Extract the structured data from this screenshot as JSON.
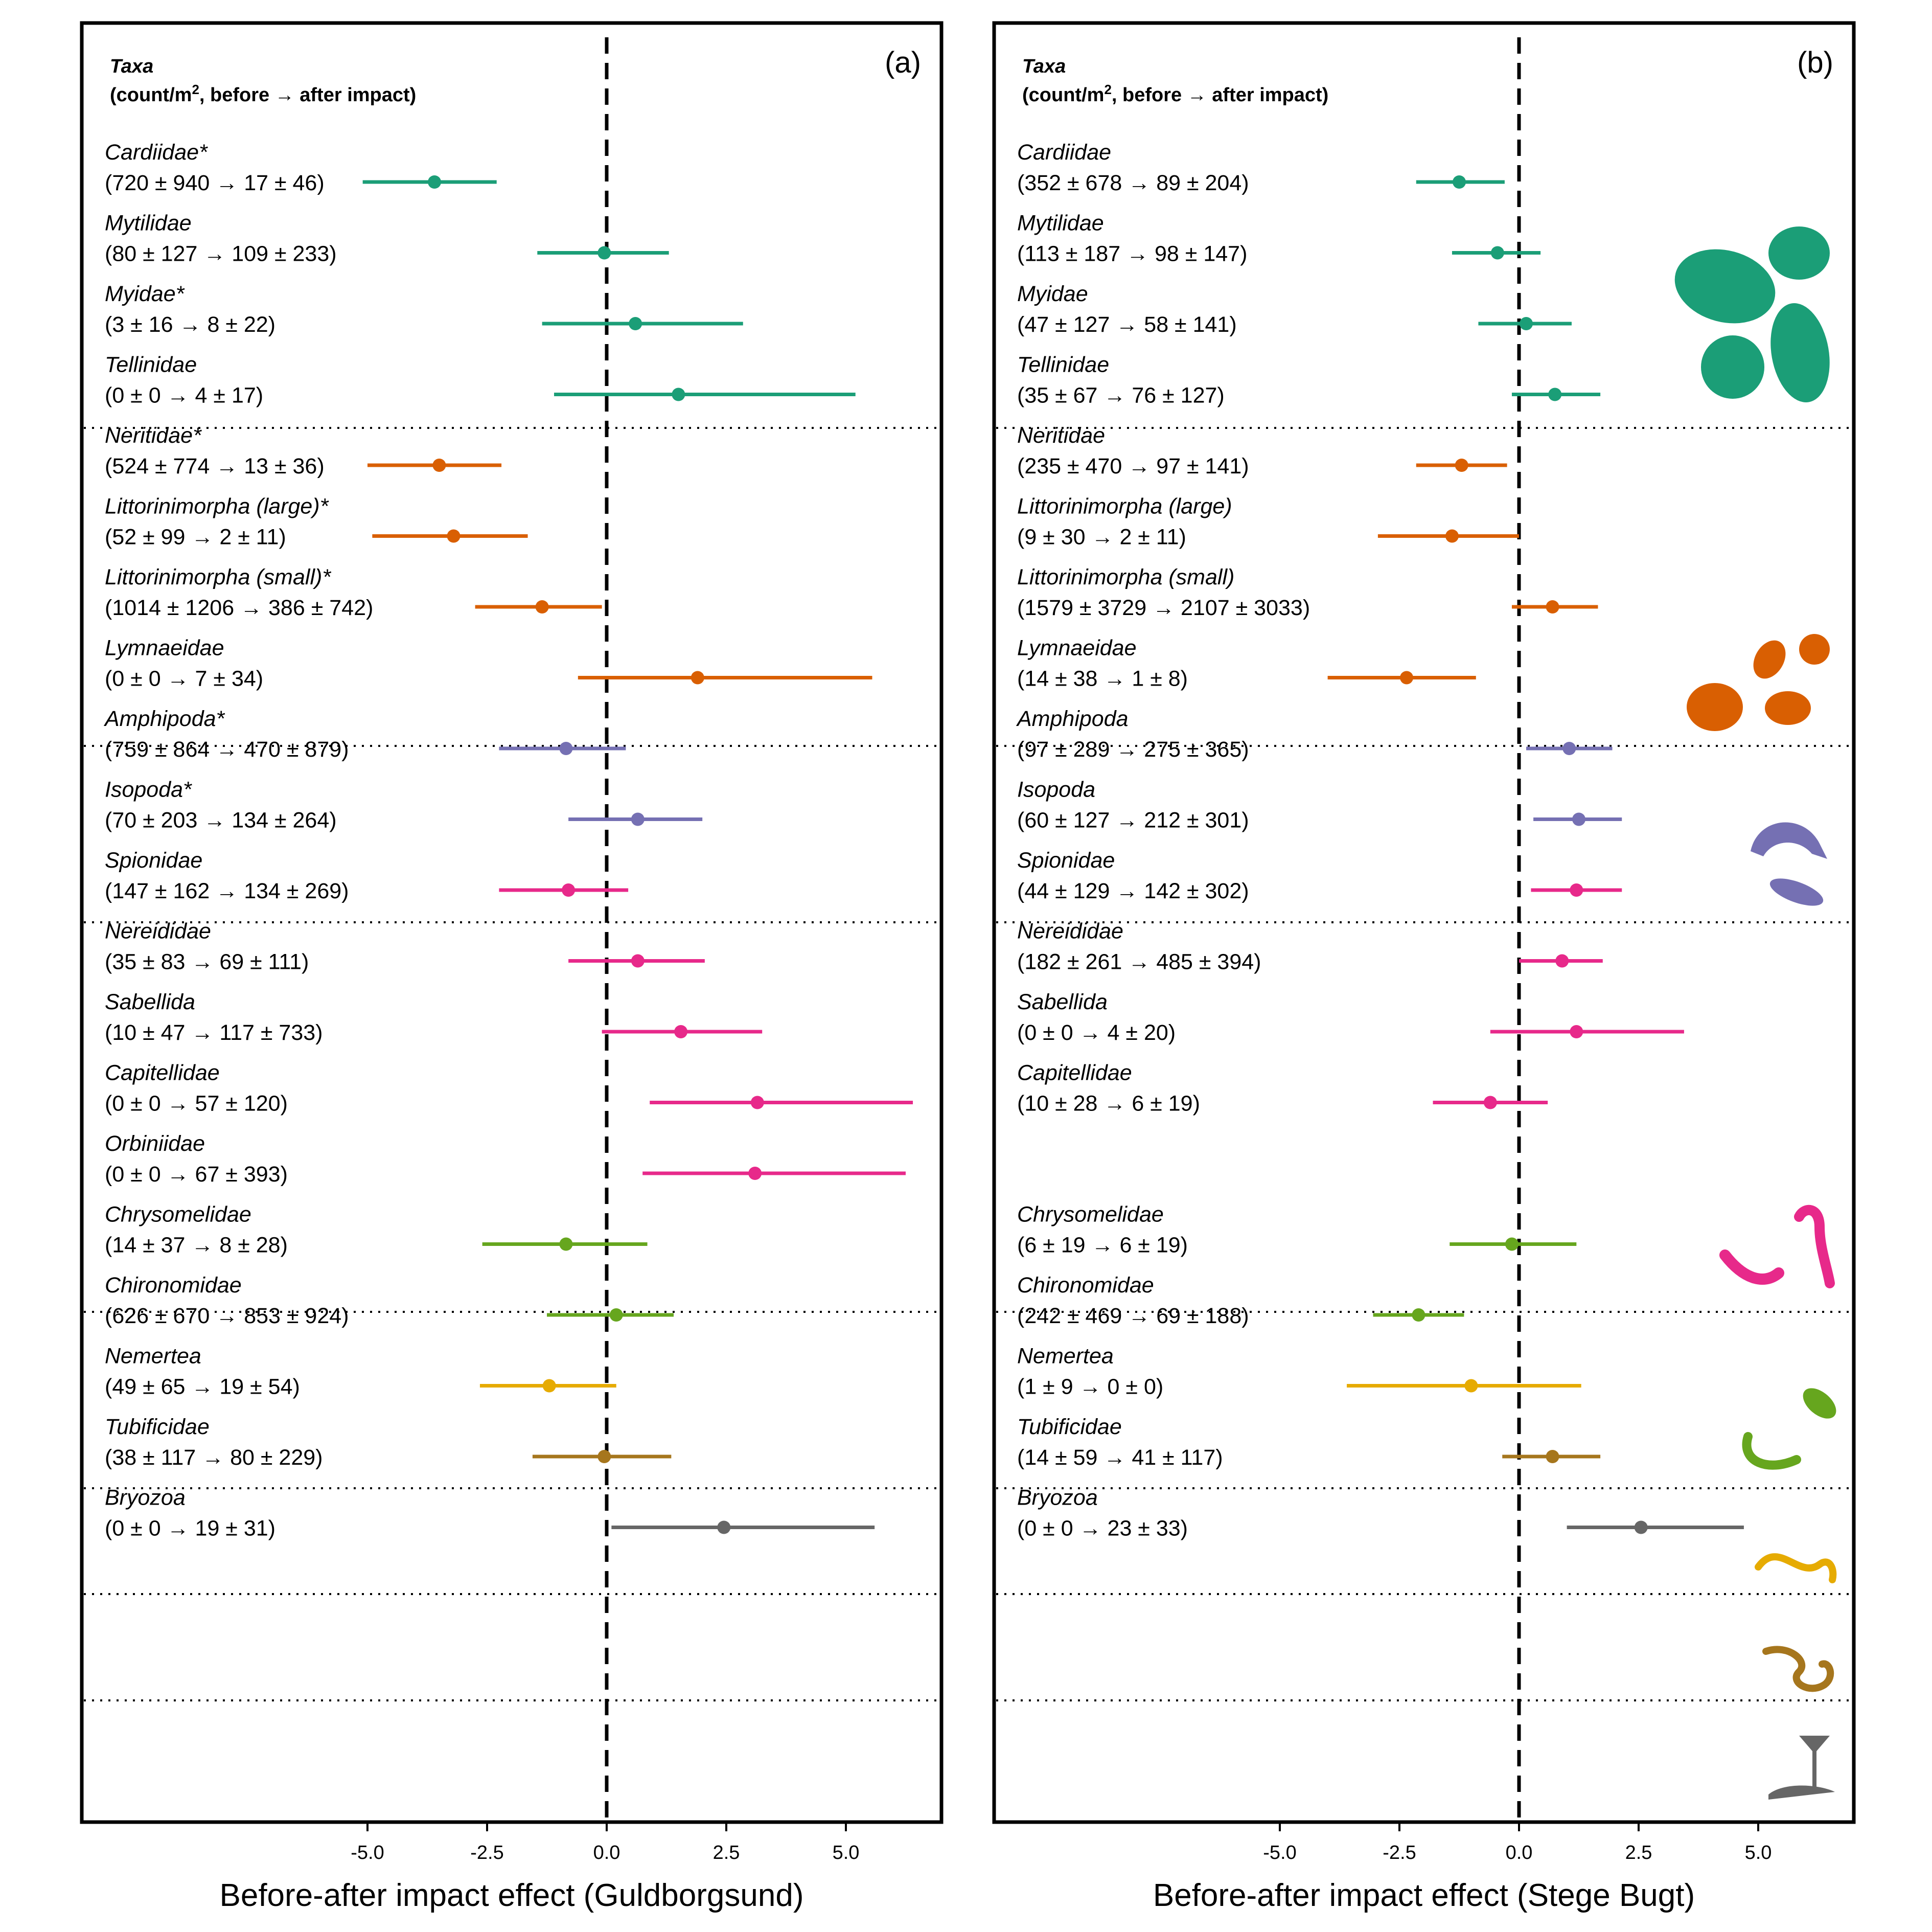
{
  "header": {
    "taxa": "Taxa",
    "unit_before": "(count/m",
    "unit_sup": "2",
    "unit_after": ", before → after impact)"
  },
  "panels": [
    {
      "label": "(a)",
      "xlabel": "Before-after impact effect (Guldborgsund)",
      "xticks": [
        "-5.0",
        "-2.5",
        "0.0",
        "2.5",
        "5.0"
      ]
    },
    {
      "label": "(b)",
      "xlabel": "Before-after impact effect (Stege Bugt)",
      "xticks": [
        "-5.0",
        "-2.5",
        "0.0",
        "2.5",
        "5.0"
      ]
    }
  ],
  "chart_data": [
    {
      "type": "forest",
      "panel": "(a)",
      "xlabel": "Before-after impact effect (Guldborgsund)",
      "xlim": [
        -10.9,
        7.0
      ],
      "reference_line": 0,
      "groups": [
        {
          "color": "#1b9e77",
          "rows": [
            {
              "name": "Cardiidae*",
              "counts": "(720 ± 940 → 17 ± 46)",
              "estimate": -3.6,
              "low": -5.1,
              "high": -2.3
            },
            {
              "name": "Mytilidae",
              "counts": "(80 ± 127 → 109 ± 233)",
              "estimate": -0.05,
              "low": -1.45,
              "high": 1.3
            },
            {
              "name": "Myidae*",
              "counts": "(3 ± 16 → 8 ± 22)",
              "estimate": 0.6,
              "low": -1.35,
              "high": 2.85
            },
            {
              "name": "Tellinidae",
              "counts": "(0 ± 0 → 4 ± 17)",
              "estimate": 1.5,
              "low": -1.1,
              "high": 5.2
            }
          ]
        },
        {
          "color": "#d95f02",
          "rows": [
            {
              "name": "Neritidae*",
              "counts": "(524 ± 774 → 13 ± 36)",
              "estimate": -3.5,
              "low": -5.0,
              "high": -2.2
            },
            {
              "name": "Littorinimorpha (large)*",
              "counts": "(52 ± 99 → 2 ± 11)",
              "estimate": -3.2,
              "low": -4.9,
              "high": -1.65
            },
            {
              "name": "Littorinimorpha (small)*",
              "counts": "(1014 ± 1206 → 386 ± 742)",
              "estimate": -1.35,
              "low": -2.75,
              "high": -0.1
            },
            {
              "name": "Lymnaeidae",
              "counts": "(0 ± 0 → 7 ± 34)",
              "estimate": 1.9,
              "low": -0.6,
              "high": 5.55
            }
          ]
        },
        {
          "color": "#7570b3",
          "rows": [
            {
              "name": "Amphipoda*",
              "counts": "(759 ± 864 → 470 ± 879)",
              "estimate": -0.85,
              "low": -2.25,
              "high": 0.4
            },
            {
              "name": "Isopoda*",
              "counts": "(70 ± 203 → 134 ± 264)",
              "estimate": 0.65,
              "low": -0.8,
              "high": 2.0
            }
          ]
        },
        {
          "color": "#e7298a",
          "rows": [
            {
              "name": "Spionidae",
              "counts": "(147 ± 162 → 134 ± 269)",
              "estimate": -0.8,
              "low": -2.25,
              "high": 0.45
            },
            {
              "name": "Nereididae",
              "counts": "(35 ± 83 → 69 ± 111)",
              "estimate": 0.65,
              "low": -0.8,
              "high": 2.05
            },
            {
              "name": "Sabellida",
              "counts": "(10 ± 47 → 117 ± 733)",
              "estimate": 1.55,
              "low": -0.1,
              "high": 3.25
            },
            {
              "name": "Capitellidae",
              "counts": "(0 ± 0 → 57 ± 120)",
              "estimate": 3.15,
              "low": 0.9,
              "high": 6.4
            },
            {
              "name": "Orbiniidae",
              "counts": "(0 ± 0 → 67 ± 393)",
              "estimate": 3.1,
              "low": 0.75,
              "high": 6.25
            }
          ]
        },
        {
          "color": "#66a61e",
          "rows": [
            {
              "name": "Chrysomelidae",
              "counts": "(14 ± 37 → 8 ± 28)",
              "estimate": -0.85,
              "low": -2.6,
              "high": 0.85
            },
            {
              "name": "Chironomidae",
              "counts": "(626 ± 670 → 853 ± 924)",
              "estimate": 0.2,
              "low": -1.25,
              "high": 1.4
            }
          ]
        },
        {
          "color": "#e6ab02",
          "rows": [
            {
              "name": "Nemertea",
              "counts": "(49 ± 65 → 19 ± 54)",
              "estimate": -1.2,
              "low": -2.65,
              "high": 0.2
            }
          ]
        },
        {
          "color": "#a6761d",
          "rows": [
            {
              "name": "Tubificidae",
              "counts": "(38 ± 117 → 80 ± 229)",
              "estimate": -0.05,
              "low": -1.55,
              "high": 1.35
            }
          ]
        },
        {
          "color": "#666666",
          "rows": [
            {
              "name": "Bryozoa",
              "counts": "(0 ± 0 → 19 ± 31)",
              "estimate": 2.45,
              "low": 0.1,
              "high": 5.6
            }
          ]
        }
      ]
    },
    {
      "type": "forest",
      "panel": "(b)",
      "xlabel": "Before-after impact effect (Stege Bugt)",
      "xlim": [
        -10.9,
        7.0
      ],
      "reference_line": 0,
      "groups": [
        {
          "color": "#1b9e77",
          "rows": [
            {
              "name": "Cardiidae",
              "counts": "(352 ± 678 → 89 ± 204)",
              "estimate": -1.25,
              "low": -2.15,
              "high": -0.3
            },
            {
              "name": "Mytilidae",
              "counts": "(113 ± 187 → 98 ± 147)",
              "estimate": -0.45,
              "low": -1.4,
              "high": 0.45
            },
            {
              "name": "Myidae",
              "counts": "(47 ± 127 → 58 ± 141)",
              "estimate": 0.15,
              "low": -0.85,
              "high": 1.1
            },
            {
              "name": "Tellinidae",
              "counts": "(35 ± 67 → 76 ± 127)",
              "estimate": 0.75,
              "low": -0.15,
              "high": 1.7
            }
          ]
        },
        {
          "color": "#d95f02",
          "rows": [
            {
              "name": "Neritidae",
              "counts": "(235 ± 470 → 97 ± 141)",
              "estimate": -1.2,
              "low": -2.15,
              "high": -0.25
            },
            {
              "name": "Littorinimorpha (large)",
              "counts": "(9 ± 30 → 2 ± 11)",
              "estimate": -1.4,
              "low": -2.95,
              "high": 0.0
            },
            {
              "name": "Littorinimorpha (small)",
              "counts": "(1579 ± 3729 → 2107 ± 3033)",
              "estimate": 0.7,
              "low": -0.15,
              "high": 1.65
            },
            {
              "name": "Lymnaeidae",
              "counts": "(14 ± 38 → 1 ± 8)",
              "estimate": -2.35,
              "low": -4.0,
              "high": -0.9
            }
          ]
        },
        {
          "color": "#7570b3",
          "rows": [
            {
              "name": "Amphipoda",
              "counts": "(97 ± 289 → 275 ± 365)",
              "estimate": 1.05,
              "low": 0.15,
              "high": 1.95
            },
            {
              "name": "Isopoda",
              "counts": "(60 ± 127 → 212 ± 301)",
              "estimate": 1.25,
              "low": 0.3,
              "high": 2.15
            }
          ]
        },
        {
          "color": "#e7298a",
          "rows": [
            {
              "name": "Spionidae",
              "counts": "(44 ± 129 → 142 ± 302)",
              "estimate": 1.2,
              "low": 0.25,
              "high": 2.15
            },
            {
              "name": "Nereididae",
              "counts": "(182 ± 261 → 485 ± 394)",
              "estimate": 0.9,
              "low": 0.0,
              "high": 1.75
            },
            {
              "name": "Sabellida",
              "counts": "(0 ± 0 → 4 ± 20)",
              "estimate": 1.2,
              "low": -0.6,
              "high": 3.45
            },
            {
              "name": "Capitellidae",
              "counts": "(10 ± 28 → 6 ± 19)",
              "estimate": -0.6,
              "low": -1.8,
              "high": 0.6
            }
          ]
        },
        {
          "color": "#66a61e",
          "rows": [
            {
              "name": "Chrysomelidae",
              "counts": "(6 ± 19 → 6 ± 19)",
              "estimate": -0.15,
              "low": -1.45,
              "high": 1.2
            },
            {
              "name": "Chironomidae",
              "counts": "(242 ± 469 → 69 ± 188)",
              "estimate": -2.1,
              "low": -3.05,
              "high": -1.15
            }
          ]
        },
        {
          "color": "#e6ab02",
          "rows": [
            {
              "name": "Nemertea",
              "counts": "(1 ± 9 → 0 ± 0)",
              "estimate": -1.0,
              "low": -3.6,
              "high": 1.3
            }
          ]
        },
        {
          "color": "#a6761d",
          "rows": [
            {
              "name": "Tubificidae",
              "counts": "(14 ± 59 → 41 ± 117)",
              "estimate": 0.7,
              "low": -0.35,
              "high": 1.7
            }
          ]
        },
        {
          "color": "#666666",
          "rows": [
            {
              "name": "Bryozoa",
              "counts": "(0 ± 0 → 23 ± 33)",
              "estimate": 2.55,
              "low": 1.0,
              "high": 4.7
            }
          ]
        }
      ]
    }
  ]
}
